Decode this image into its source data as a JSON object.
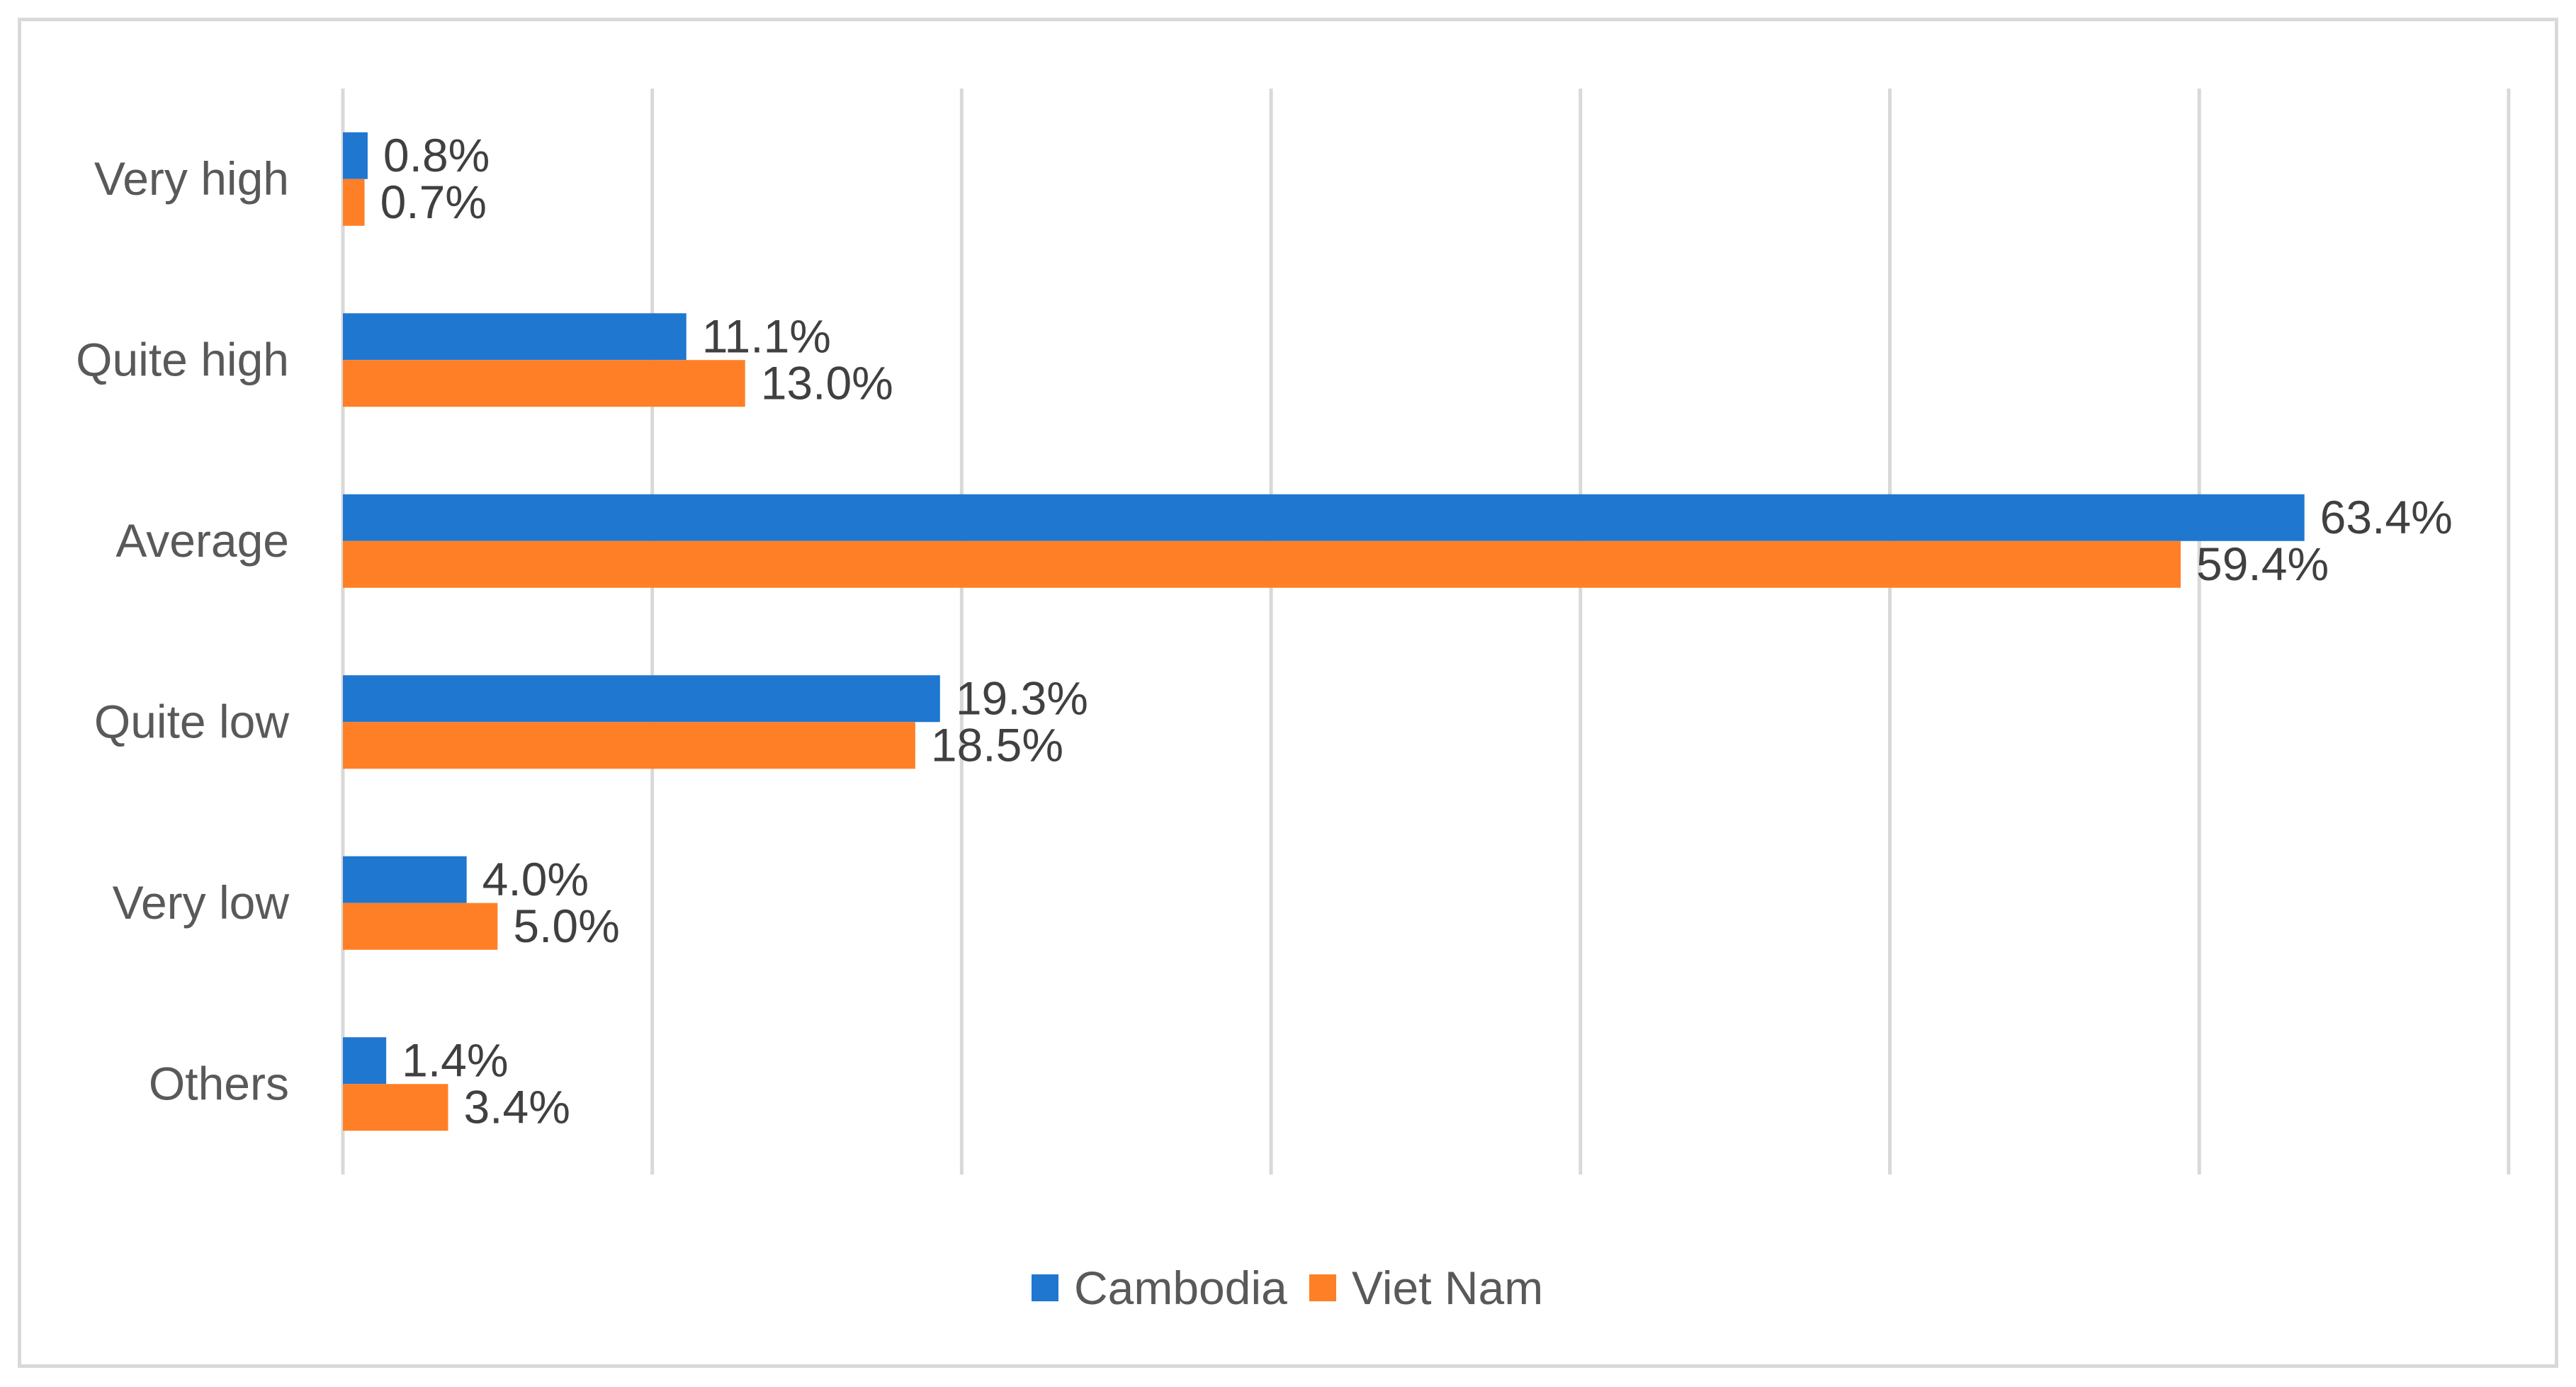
{
  "chart_data": {
    "type": "bar",
    "orientation": "horizontal",
    "categories": [
      "Very high",
      "Quite high",
      "Average",
      "Quite low",
      "Very low",
      "Others"
    ],
    "series": [
      {
        "name": "Cambodia",
        "color": "#1f77d0",
        "values": [
          0.8,
          11.1,
          63.4,
          19.3,
          4.0,
          1.4
        ],
        "labels": [
          "0.8%",
          "11.1%",
          "63.4%",
          "19.3%",
          "4.0%",
          "1.4%"
        ]
      },
      {
        "name": "Viet Nam",
        "color": "#ff7f27",
        "values": [
          0.7,
          13.0,
          59.4,
          18.5,
          5.0,
          3.4
        ],
        "labels": [
          "0.7%",
          "13.0%",
          "59.4%",
          "18.5%",
          "5.0%",
          "3.4%"
        ]
      }
    ],
    "xlim": [
      0,
      70
    ],
    "x_gridline_step": 10,
    "x_tick_labels_shown": false,
    "grid": true,
    "legend_position": "bottom",
    "title": "",
    "xlabel": "",
    "ylabel": ""
  }
}
